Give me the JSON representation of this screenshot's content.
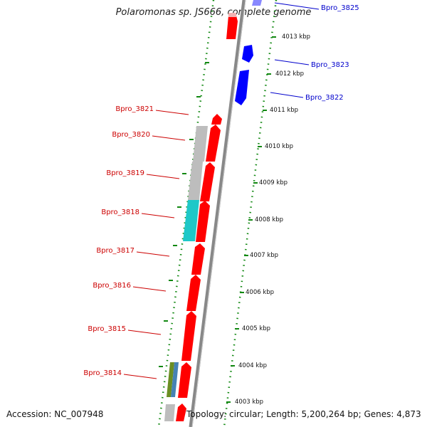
{
  "title": "Polaromonas sp. JS666, complete genome",
  "footer": {
    "accession": "Accession: NC_007948",
    "topology": "Topology: circular; Length: 5,200,264 bp; Genes: 4,873"
  },
  "scale": {
    "ticks": [
      "4003 kbp",
      "4004 kbp",
      "4005 kbp",
      "4006 kbp",
      "4007 kbp",
      "4008 kbp",
      "4009 kbp",
      "4010 kbp",
      "4011 kbp",
      "4012 kbp",
      "4013 kbp"
    ]
  },
  "genes_left": [
    {
      "name": "Bpro_3821"
    },
    {
      "name": "Bpro_3820"
    },
    {
      "name": "Bpro_3819"
    },
    {
      "name": "Bpro_3818"
    },
    {
      "name": "Bpro_3817"
    },
    {
      "name": "Bpro_3816"
    },
    {
      "name": "Bpro_3815"
    },
    {
      "name": "Bpro_3814"
    }
  ],
  "genes_right": [
    {
      "name": "Bpro_3825"
    },
    {
      "name": "Bpro_3823"
    },
    {
      "name": "Bpro_3822"
    }
  ],
  "colors": {
    "forward_gene": "#ff0000",
    "reverse_gene": "#0000ff",
    "left_label": "#cc0000",
    "right_label": "#0000cc",
    "track_gray": "#bdbdbd",
    "track_cyan": "#1ec8c8",
    "track_green": "#6b8e23",
    "track_blue": "#4682b4",
    "axis": "#888888",
    "dots": "#118811"
  }
}
